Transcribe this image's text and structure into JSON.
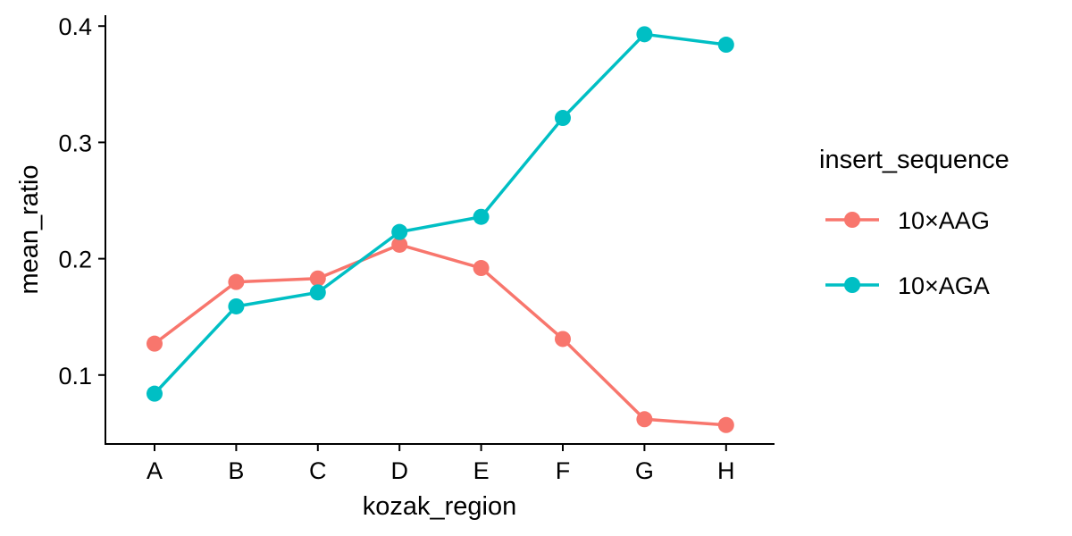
{
  "chart_data": {
    "type": "line",
    "xlabel": "kozak_region",
    "ylabel": "mean_ratio",
    "categories": [
      "A",
      "B",
      "C",
      "D",
      "E",
      "F",
      "G",
      "H"
    ],
    "ylim": [
      0.04,
      0.41
    ],
    "yticks": [
      0.1,
      0.2,
      0.3,
      0.4
    ],
    "ytick_labels": [
      "0.1",
      "0.2",
      "0.3",
      "0.4"
    ],
    "grid": false,
    "legend": {
      "title": "insert_sequence",
      "position": "right"
    },
    "series": [
      {
        "name": "10×AAG",
        "color": "#F8766D",
        "values": [
          0.127,
          0.18,
          0.183,
          0.212,
          0.192,
          0.131,
          0.062,
          0.057
        ]
      },
      {
        "name": "10×AGA",
        "color": "#00BFC4",
        "values": [
          0.084,
          0.159,
          0.171,
          0.223,
          0.236,
          0.321,
          0.393,
          0.384
        ]
      }
    ]
  }
}
